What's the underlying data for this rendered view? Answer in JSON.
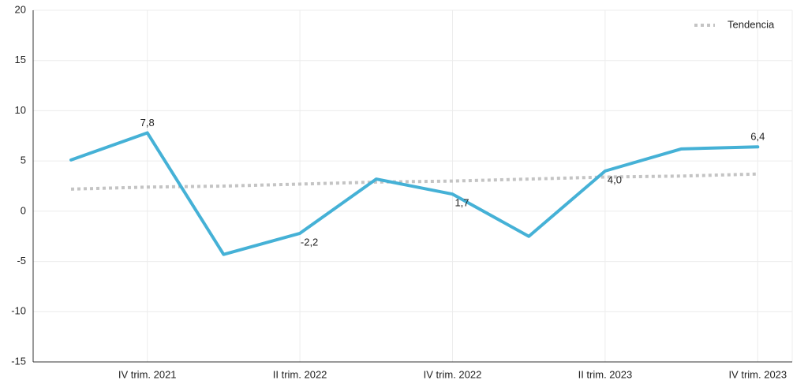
{
  "chart_data": {
    "type": "line",
    "categories": [
      null,
      "IV trim. 2021",
      null,
      "II trim. 2022",
      null,
      "IV trim. 2022",
      null,
      "II trim. 2023",
      null,
      "IV trim. 2023"
    ],
    "series": [
      {
        "name": null,
        "color": "#45b1d6",
        "values": [
          5.1,
          7.8,
          -4.3,
          -2.2,
          3.2,
          1.7,
          -2.5,
          4.0,
          6.2,
          6.4
        ],
        "value_labels": [
          null,
          "7,8",
          null,
          "-2,2",
          null,
          "1,7",
          null,
          "4,0",
          null,
          "6,4"
        ]
      },
      {
        "name": "Tendencia",
        "color": "#c4c4c4",
        "style": "dotted",
        "values": [
          2.2,
          2.4,
          2.5,
          2.7,
          2.9,
          3.0,
          3.2,
          3.4,
          3.5,
          3.7
        ]
      }
    ],
    "ylim": [
      -15,
      20
    ],
    "yticks": [
      -15,
      -10,
      -5,
      0,
      5,
      10,
      15,
      20
    ],
    "grid": true,
    "legend": "top-right"
  }
}
